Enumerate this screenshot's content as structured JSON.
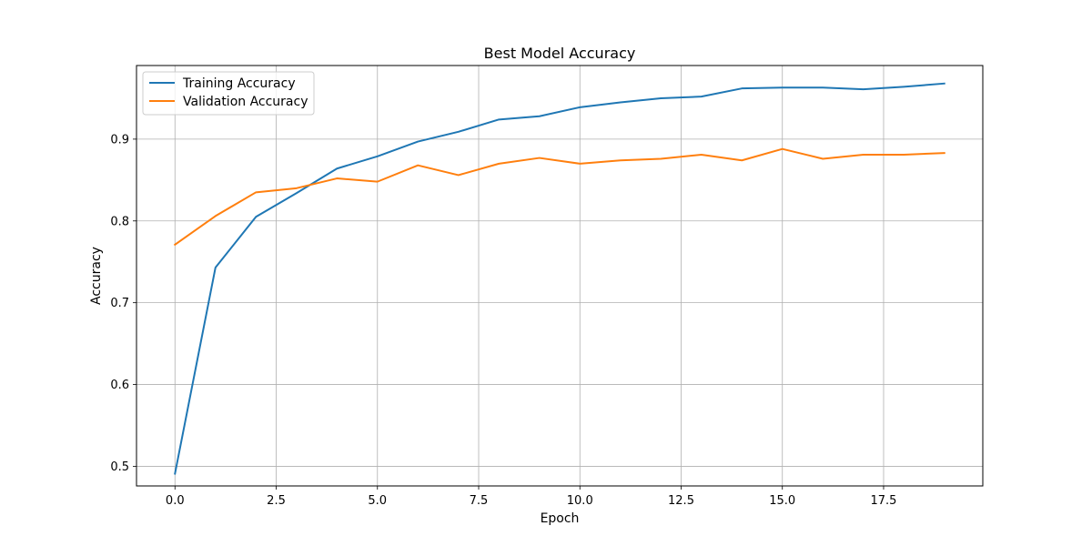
{
  "chart_data": {
    "type": "line",
    "title": "Best Model Accuracy",
    "xlabel": "Epoch",
    "ylabel": "Accuracy",
    "xlim": [
      -0.95,
      19.95
    ],
    "ylim": [
      0.476,
      0.99
    ],
    "x_ticks": [
      0.0,
      2.5,
      5.0,
      7.5,
      10.0,
      12.5,
      15.0,
      17.5
    ],
    "x_tick_labels": [
      "0.0",
      "2.5",
      "5.0",
      "7.5",
      "10.0",
      "12.5",
      "15.0",
      "17.5"
    ],
    "y_ticks": [
      0.5,
      0.6,
      0.7,
      0.8,
      0.9
    ],
    "y_tick_labels": [
      "0.5",
      "0.6",
      "0.7",
      "0.8",
      "0.9"
    ],
    "grid": true,
    "legend_position": "top-left",
    "x": [
      0,
      1,
      2,
      3,
      4,
      5,
      6,
      7,
      8,
      9,
      10,
      11,
      12,
      13,
      14,
      15,
      16,
      17,
      18,
      19
    ],
    "series": [
      {
        "name": "Training Accuracy",
        "color": "#1f77b4",
        "values": [
          0.491,
          0.743,
          0.805,
          0.834,
          0.864,
          0.879,
          0.897,
          0.909,
          0.924,
          0.928,
          0.939,
          0.945,
          0.95,
          0.952,
          0.962,
          0.963,
          0.963,
          0.961,
          0.964,
          0.968
        ]
      },
      {
        "name": "Validation Accuracy",
        "color": "#ff7f0e",
        "values": [
          0.771,
          0.806,
          0.835,
          0.84,
          0.852,
          0.848,
          0.868,
          0.856,
          0.87,
          0.877,
          0.87,
          0.874,
          0.876,
          0.881,
          0.874,
          0.888,
          0.876,
          0.881,
          0.881,
          0.883
        ]
      }
    ]
  }
}
